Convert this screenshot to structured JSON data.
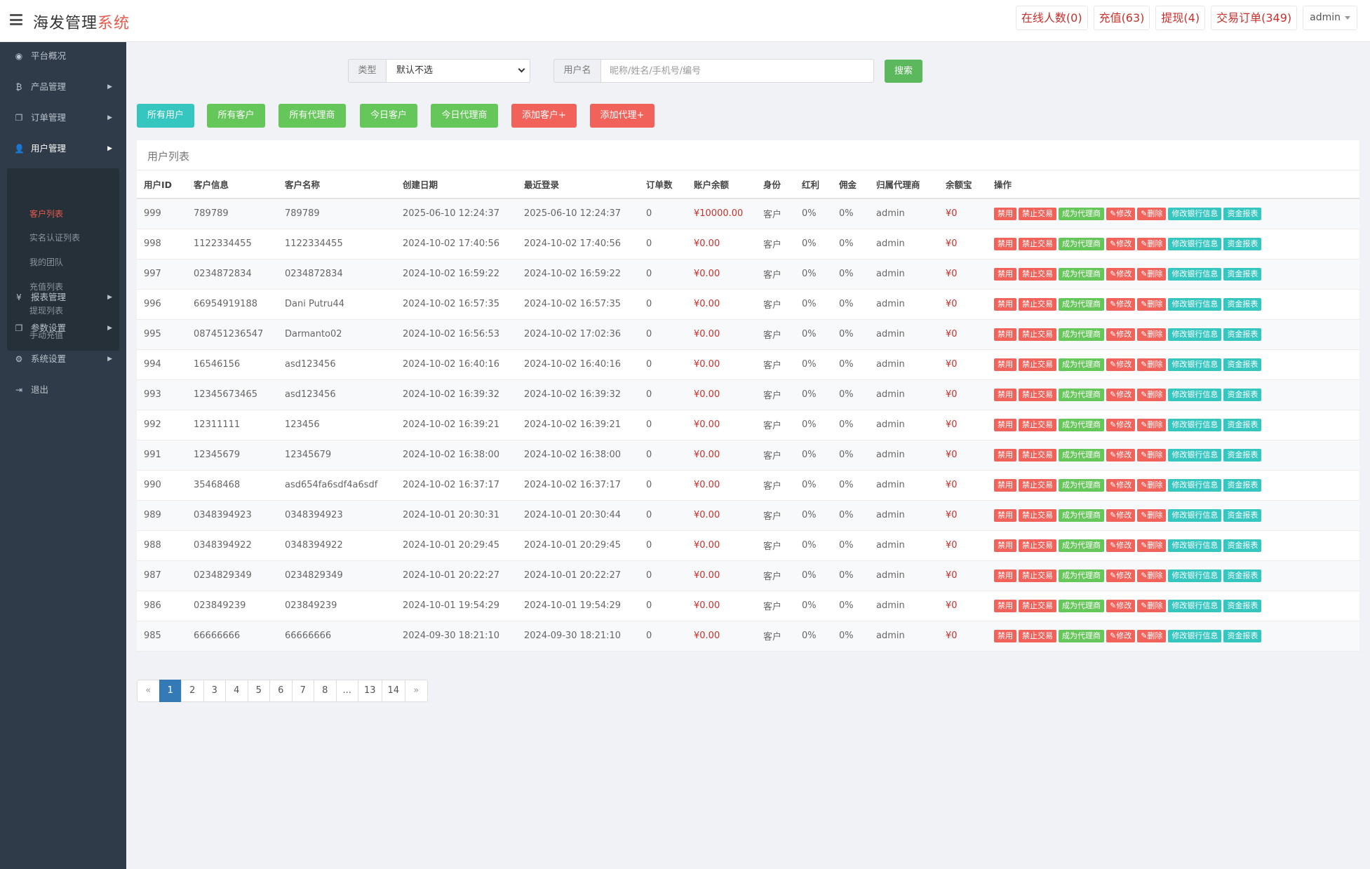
{
  "header": {
    "brand_main": "海发管理",
    "brand_accent": "系统",
    "links": [
      {
        "label": "在线人数(0)"
      },
      {
        "label": "充值(63)"
      },
      {
        "label": "提现(4)"
      },
      {
        "label": "交易订单(349)"
      }
    ],
    "user": "admin"
  },
  "sidebar": {
    "items": [
      {
        "label": "平台概况",
        "icon": "dashboard-icon",
        "glyph": "◉"
      },
      {
        "label": "产品管理",
        "icon": "bitcoin-icon",
        "glyph": "₿"
      },
      {
        "label": "订单管理",
        "icon": "copy-icon",
        "glyph": "❐"
      },
      {
        "label": "用户管理",
        "icon": "user-icon",
        "glyph": "👤"
      },
      {
        "label": "报表管理",
        "icon": "yen-icon",
        "glyph": "¥"
      },
      {
        "label": "参数设置",
        "icon": "copy-icon",
        "glyph": "❐"
      },
      {
        "label": "系统设置",
        "icon": "gears-icon",
        "glyph": "⚙"
      },
      {
        "label": "退出",
        "icon": "sign-out-icon",
        "glyph": "⇥"
      }
    ],
    "sub_items": [
      {
        "label": "客户列表"
      },
      {
        "label": "实名认证列表"
      },
      {
        "label": "我的团队"
      },
      {
        "label": "充值列表"
      },
      {
        "label": "提现列表"
      },
      {
        "label": "手动充值"
      }
    ]
  },
  "search": {
    "type_label": "类型",
    "type_value": "默认不选",
    "username_label": "用户名",
    "username_placeholder": "昵称/姓名/手机号/编号",
    "search_button": "搜索"
  },
  "filters": [
    {
      "label": "所有用户"
    },
    {
      "label": "所有客户"
    },
    {
      "label": "所有代理商"
    },
    {
      "label": "今日客户"
    },
    {
      "label": "今日代理商"
    },
    {
      "label": "添加客户+"
    },
    {
      "label": "添加代理+"
    }
  ],
  "panel_title": "用户列表",
  "columns": [
    "用户ID",
    "客户信息",
    "客户名称",
    "创建日期",
    "最近登录",
    "订单数",
    "账户余额",
    "身份",
    "红利",
    "佣金",
    "归属代理商",
    "余额宝",
    "操作"
  ],
  "actions": [
    "禁用",
    "禁止交易",
    "成为代理商",
    "✎修改",
    "✎删除",
    "修改银行信息",
    "资金报表"
  ],
  "rows": [
    [
      "999",
      "789789",
      "789789",
      "2025-06-10 12:24:37",
      "2025-06-10 12:24:37",
      "0",
      "¥10000.00",
      "客户",
      "0%",
      "0%",
      "admin",
      "¥0"
    ],
    [
      "998",
      "1122334455",
      "1122334455",
      "2024-10-02 17:40:56",
      "2024-10-02 17:40:56",
      "0",
      "¥0.00",
      "客户",
      "0%",
      "0%",
      "admin",
      "¥0"
    ],
    [
      "997",
      "0234872834",
      "0234872834",
      "2024-10-02 16:59:22",
      "2024-10-02 16:59:22",
      "0",
      "¥0.00",
      "客户",
      "0%",
      "0%",
      "admin",
      "¥0"
    ],
    [
      "996",
      "66954919188",
      "Dani Putru44",
      "2024-10-02 16:57:35",
      "2024-10-02 16:57:35",
      "0",
      "¥0.00",
      "客户",
      "0%",
      "0%",
      "admin",
      "¥0"
    ],
    [
      "995",
      "087451236547",
      "Darmanto02",
      "2024-10-02 16:56:53",
      "2024-10-02 17:02:36",
      "0",
      "¥0.00",
      "客户",
      "0%",
      "0%",
      "admin",
      "¥0"
    ],
    [
      "994",
      "16546156",
      "asd123456",
      "2024-10-02 16:40:16",
      "2024-10-02 16:40:16",
      "0",
      "¥0.00",
      "客户",
      "0%",
      "0%",
      "admin",
      "¥0"
    ],
    [
      "993",
      "12345673465",
      "asd123456",
      "2024-10-02 16:39:32",
      "2024-10-02 16:39:32",
      "0",
      "¥0.00",
      "客户",
      "0%",
      "0%",
      "admin",
      "¥0"
    ],
    [
      "992",
      "12311111",
      "123456",
      "2024-10-02 16:39:21",
      "2024-10-02 16:39:21",
      "0",
      "¥0.00",
      "客户",
      "0%",
      "0%",
      "admin",
      "¥0"
    ],
    [
      "991",
      "12345679",
      "12345679",
      "2024-10-02 16:38:00",
      "2024-10-02 16:38:00",
      "0",
      "¥0.00",
      "客户",
      "0%",
      "0%",
      "admin",
      "¥0"
    ],
    [
      "990",
      "35468468",
      "asd654fa6sdf4a6sdf",
      "2024-10-02 16:37:17",
      "2024-10-02 16:37:17",
      "0",
      "¥0.00",
      "客户",
      "0%",
      "0%",
      "admin",
      "¥0"
    ],
    [
      "989",
      "0348394923",
      "0348394923",
      "2024-10-01 20:30:31",
      "2024-10-01 20:30:44",
      "0",
      "¥0.00",
      "客户",
      "0%",
      "0%",
      "admin",
      "¥0"
    ],
    [
      "988",
      "0348394922",
      "0348394922",
      "2024-10-01 20:29:45",
      "2024-10-01 20:29:45",
      "0",
      "¥0.00",
      "客户",
      "0%",
      "0%",
      "admin",
      "¥0"
    ],
    [
      "987",
      "0234829349",
      "0234829349",
      "2024-10-01 20:22:27",
      "2024-10-01 20:22:27",
      "0",
      "¥0.00",
      "客户",
      "0%",
      "0%",
      "admin",
      "¥0"
    ],
    [
      "986",
      "023849239",
      "023849239",
      "2024-10-01 19:54:29",
      "2024-10-01 19:54:29",
      "0",
      "¥0.00",
      "客户",
      "0%",
      "0%",
      "admin",
      "¥0"
    ],
    [
      "985",
      "66666666",
      "66666666",
      "2024-09-30 18:21:10",
      "2024-09-30 18:21:10",
      "0",
      "¥0.00",
      "客户",
      "0%",
      "0%",
      "admin",
      "¥0"
    ]
  ],
  "pagination": [
    "«",
    "1",
    "2",
    "3",
    "4",
    "5",
    "6",
    "7",
    "8",
    "...",
    "13",
    "14",
    "»"
  ],
  "current_page": "1",
  "colors": {
    "teal": "#36c6c0",
    "green": "#65c65a",
    "red": "#f0625a",
    "sidebar": "#2f3b48",
    "accent": "#e8594c",
    "page_active": "#337ab7"
  }
}
